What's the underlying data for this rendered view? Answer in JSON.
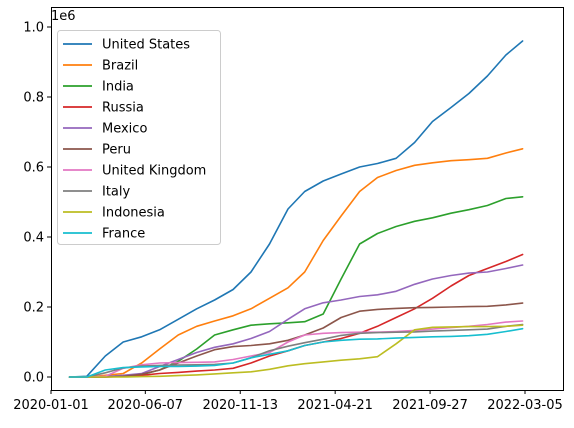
{
  "chart_data": {
    "type": "line",
    "scale_label": "1e6",
    "xlabel": "",
    "ylabel": "",
    "legend_position": "upper-left",
    "x_ticks": [
      "2020-01-01",
      "2020-06-07",
      "2020-11-13",
      "2021-04-21",
      "2021-09-27",
      "2022-03-05"
    ],
    "y_ticks": [
      "0.0",
      "0.2",
      "0.4",
      "0.6",
      "0.8",
      "1.0"
    ],
    "ylim": [
      -0.03,
      1.0
    ],
    "x_dates": [
      "2020-02-01",
      "2020-03-01",
      "2020-04-01",
      "2020-05-01",
      "2020-06-01",
      "2020-07-01",
      "2020-08-01",
      "2020-09-01",
      "2020-10-01",
      "2020-11-01",
      "2020-12-01",
      "2021-01-01",
      "2021-02-01",
      "2021-03-01",
      "2021-04-01",
      "2021-05-01",
      "2021-06-01",
      "2021-07-01",
      "2021-08-01",
      "2021-09-01",
      "2021-10-01",
      "2021-11-01",
      "2021-12-01",
      "2022-01-01",
      "2022-02-01",
      "2022-03-01"
    ],
    "series": [
      {
        "name": "United States",
        "color": "#1f77b4",
        "values": [
          0.0,
          0.002,
          0.06,
          0.1,
          0.115,
          0.135,
          0.165,
          0.195,
          0.22,
          0.25,
          0.3,
          0.38,
          0.48,
          0.53,
          0.56,
          0.58,
          0.6,
          0.61,
          0.625,
          0.67,
          0.73,
          0.77,
          0.81,
          0.86,
          0.92,
          0.96
        ]
      },
      {
        "name": "Brazil",
        "color": "#ff7f0e",
        "values": [
          0.0,
          0.0,
          0.005,
          0.01,
          0.04,
          0.08,
          0.12,
          0.145,
          0.16,
          0.175,
          0.195,
          0.225,
          0.255,
          0.3,
          0.39,
          0.46,
          0.53,
          0.57,
          0.59,
          0.605,
          0.612,
          0.618,
          0.621,
          0.625,
          0.64,
          0.652
        ]
      },
      {
        "name": "India",
        "color": "#2ca02c",
        "values": [
          0.0,
          0.0,
          0.0,
          0.003,
          0.007,
          0.02,
          0.045,
          0.08,
          0.12,
          0.135,
          0.148,
          0.152,
          0.155,
          0.158,
          0.18,
          0.28,
          0.38,
          0.41,
          0.43,
          0.445,
          0.455,
          0.468,
          0.478,
          0.49,
          0.51,
          0.515
        ]
      },
      {
        "name": "Russia",
        "color": "#d62728",
        "values": [
          0.0,
          0.0,
          0.0,
          0.001,
          0.005,
          0.01,
          0.013,
          0.017,
          0.02,
          0.025,
          0.04,
          0.06,
          0.075,
          0.09,
          0.1,
          0.11,
          0.125,
          0.145,
          0.17,
          0.195,
          0.225,
          0.26,
          0.29,
          0.31,
          0.33,
          0.35
        ]
      },
      {
        "name": "Mexico",
        "color": "#9467bd",
        "values": [
          0.0,
          0.0,
          0.001,
          0.005,
          0.01,
          0.03,
          0.05,
          0.07,
          0.085,
          0.095,
          0.11,
          0.13,
          0.165,
          0.195,
          0.212,
          0.22,
          0.23,
          0.235,
          0.245,
          0.265,
          0.28,
          0.29,
          0.297,
          0.3,
          0.31,
          0.32
        ]
      },
      {
        "name": "Peru",
        "color": "#8c564b",
        "values": [
          0.0,
          0.0,
          0.0,
          0.002,
          0.008,
          0.02,
          0.04,
          0.06,
          0.078,
          0.087,
          0.09,
          0.095,
          0.105,
          0.12,
          0.14,
          0.17,
          0.188,
          0.193,
          0.196,
          0.198,
          0.199,
          0.2,
          0.201,
          0.202,
          0.206,
          0.211
        ]
      },
      {
        "name": "United Kingdom",
        "color": "#e377c2",
        "values": [
          0.0,
          0.0,
          0.002,
          0.025,
          0.035,
          0.04,
          0.041,
          0.042,
          0.043,
          0.05,
          0.06,
          0.07,
          0.1,
          0.12,
          0.125,
          0.127,
          0.128,
          0.128,
          0.13,
          0.133,
          0.137,
          0.141,
          0.145,
          0.15,
          0.157,
          0.16
        ]
      },
      {
        "name": "Italy",
        "color": "#7f7f7f",
        "values": [
          0.0,
          0.0,
          0.012,
          0.026,
          0.031,
          0.033,
          0.034,
          0.035,
          0.036,
          0.04,
          0.055,
          0.075,
          0.088,
          0.098,
          0.108,
          0.119,
          0.125,
          0.127,
          0.128,
          0.129,
          0.131,
          0.133,
          0.135,
          0.137,
          0.145,
          0.15
        ]
      },
      {
        "name": "Indonesia",
        "color": "#bcbd22",
        "values": [
          0.0,
          0.0,
          0.0,
          0.0,
          0.001,
          0.002,
          0.004,
          0.006,
          0.009,
          0.012,
          0.015,
          0.022,
          0.032,
          0.038,
          0.043,
          0.048,
          0.052,
          0.058,
          0.095,
          0.135,
          0.142,
          0.143,
          0.144,
          0.144,
          0.145,
          0.148
        ]
      },
      {
        "name": "France",
        "color": "#17becf",
        "values": [
          0.0,
          0.0,
          0.02,
          0.027,
          0.029,
          0.03,
          0.03,
          0.031,
          0.033,
          0.04,
          0.055,
          0.065,
          0.075,
          0.09,
          0.1,
          0.105,
          0.108,
          0.109,
          0.111,
          0.113,
          0.115,
          0.116,
          0.118,
          0.122,
          0.13,
          0.138
        ]
      }
    ]
  }
}
